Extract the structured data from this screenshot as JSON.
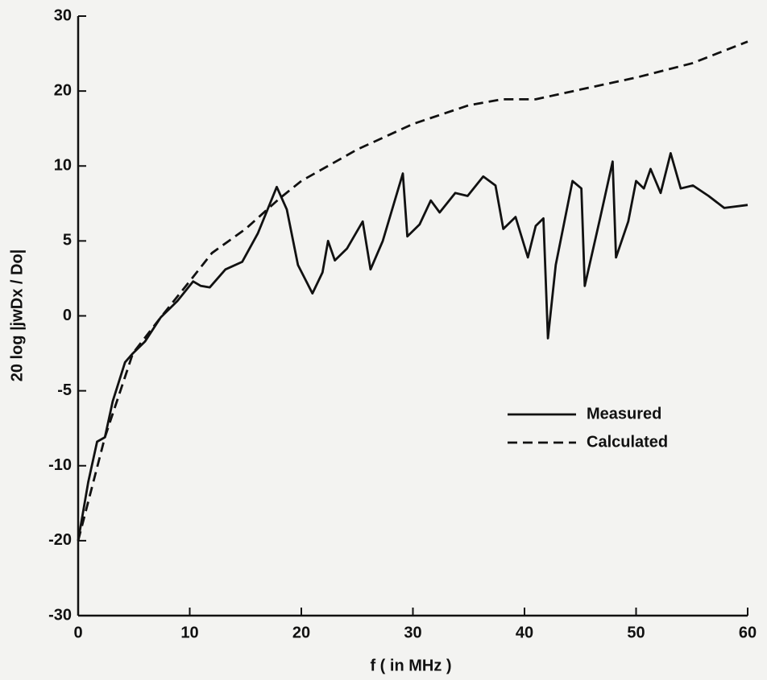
{
  "chart_data": {
    "type": "line",
    "xlabel": "f ( in MHz )",
    "ylabel": "20 log |jwDx / Do|",
    "xlim": [
      0,
      60
    ],
    "xticks": [
      0,
      10,
      20,
      30,
      40,
      50,
      60
    ],
    "ylim": [
      -30,
      30
    ],
    "yticks": [
      30,
      20,
      10,
      5,
      0,
      -5,
      -10,
      -20,
      -30
    ],
    "yscale": "piecewise",
    "legend": "center right",
    "series": [
      {
        "name": "Measured",
        "color": "#111111",
        "dash": "solid",
        "x": [
          0,
          0.9,
          1.7,
          2.4,
          3.1,
          4.2,
          4.9,
          6.0,
          7.4,
          8.9,
          10.3,
          11.0,
          11.8,
          13.2,
          14.7,
          16.1,
          17.8,
          18.7,
          19.7,
          21.0,
          21.9,
          22.4,
          23.0,
          24.1,
          25.5,
          26.2,
          27.3,
          29.1,
          29.5,
          30.6,
          31.6,
          32.4,
          33.8,
          34.9,
          36.3,
          37.4,
          38.1,
          39.2,
          40.3,
          41.0,
          41.7,
          42.1,
          42.8,
          44.3,
          45.1,
          45.4,
          46.8,
          47.9,
          48.2,
          49.3,
          50.0,
          50.7,
          51.3,
          52.2,
          53.1,
          54.0,
          55.1,
          56.5,
          57.9,
          60
        ],
        "values": [
          -20,
          -12.2,
          -8.4,
          -8.1,
          -5.7,
          -3.1,
          -2.5,
          -1.7,
          -0.1,
          1.0,
          2.3,
          2.0,
          1.9,
          3.1,
          3.6,
          5.5,
          8.6,
          7.1,
          3.4,
          1.5,
          2.9,
          5.0,
          3.7,
          4.5,
          6.3,
          3.1,
          5.0,
          9.5,
          5.3,
          6.1,
          7.7,
          6.9,
          8.2,
          8.0,
          9.3,
          8.7,
          5.8,
          6.6,
          3.9,
          6.0,
          6.5,
          -1.5,
          3.4,
          9.0,
          8.5,
          2.0,
          6.6,
          10.6,
          3.9,
          6.3,
          9.0,
          8.5,
          9.8,
          8.2,
          11.7,
          8.5,
          8.7,
          8.0,
          7.2,
          7.4
        ]
      },
      {
        "name": "Calculated",
        "color": "#111111",
        "dash": "dashed",
        "x": [
          0,
          2.4,
          4.9,
          7.4,
          10.3,
          12,
          15,
          18,
          20,
          25,
          30,
          35,
          38,
          41,
          45,
          50,
          55,
          60
        ],
        "values": [
          -20,
          -8.1,
          -2.5,
          -0.1,
          2.6,
          4.2,
          5.8,
          7.8,
          9.0,
          12.2,
          15.6,
          18.1,
          18.9,
          18.9,
          20.2,
          21.8,
          23.7,
          26.6
        ]
      }
    ]
  }
}
